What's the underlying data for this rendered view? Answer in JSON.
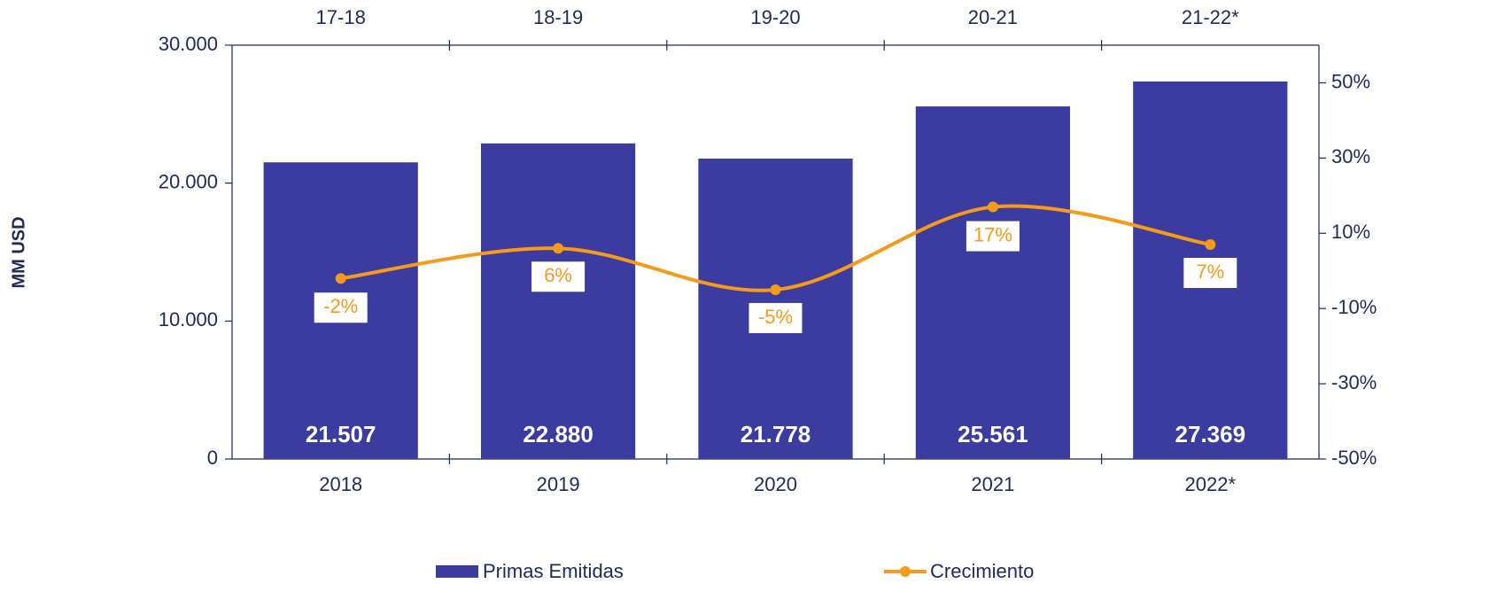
{
  "chart_data": {
    "type": "bar_line",
    "y_axis_label": "MM USD",
    "categories": [
      "2018",
      "2019",
      "2020",
      "2021",
      "2022*"
    ],
    "x2_categories": [
      "17-18",
      "18-19",
      "19-20",
      "20-21",
      "21-22*"
    ],
    "ylim": [
      0,
      30000
    ],
    "yticks": [
      0,
      {
        "value": 10000,
        "label": "10.000"
      },
      {
        "value": 20000,
        "label": "20.000"
      },
      {
        "value": 30000,
        "label": "30.000"
      }
    ],
    "y2lim": [
      -50,
      60
    ],
    "y2ticks": [
      {
        "value": -50,
        "label": "-50%"
      },
      {
        "value": -30,
        "label": "-30%"
      },
      {
        "value": -10,
        "label": "-10%"
      },
      {
        "value": 10,
        "label": "10%"
      },
      {
        "value": 30,
        "label": "30%"
      },
      {
        "value": 50,
        "label": "50%"
      }
    ],
    "legend": "bottom",
    "series": [
      {
        "name": "Primas Emitidas",
        "type": "bar",
        "color": "#3b3ba0",
        "values": [
          21507,
          22880,
          21778,
          25561,
          27369
        ],
        "value_labels": [
          "21.507",
          "22.880",
          "21.778",
          "25.561",
          "27.369"
        ]
      },
      {
        "name": "Crecimiento",
        "type": "line",
        "axis": "y2",
        "color": "#f59a1b",
        "values": [
          -2,
          6,
          -5,
          17,
          7
        ],
        "value_labels": [
          "-2%",
          "6%",
          "-5%",
          "17%",
          "7%"
        ]
      }
    ]
  }
}
